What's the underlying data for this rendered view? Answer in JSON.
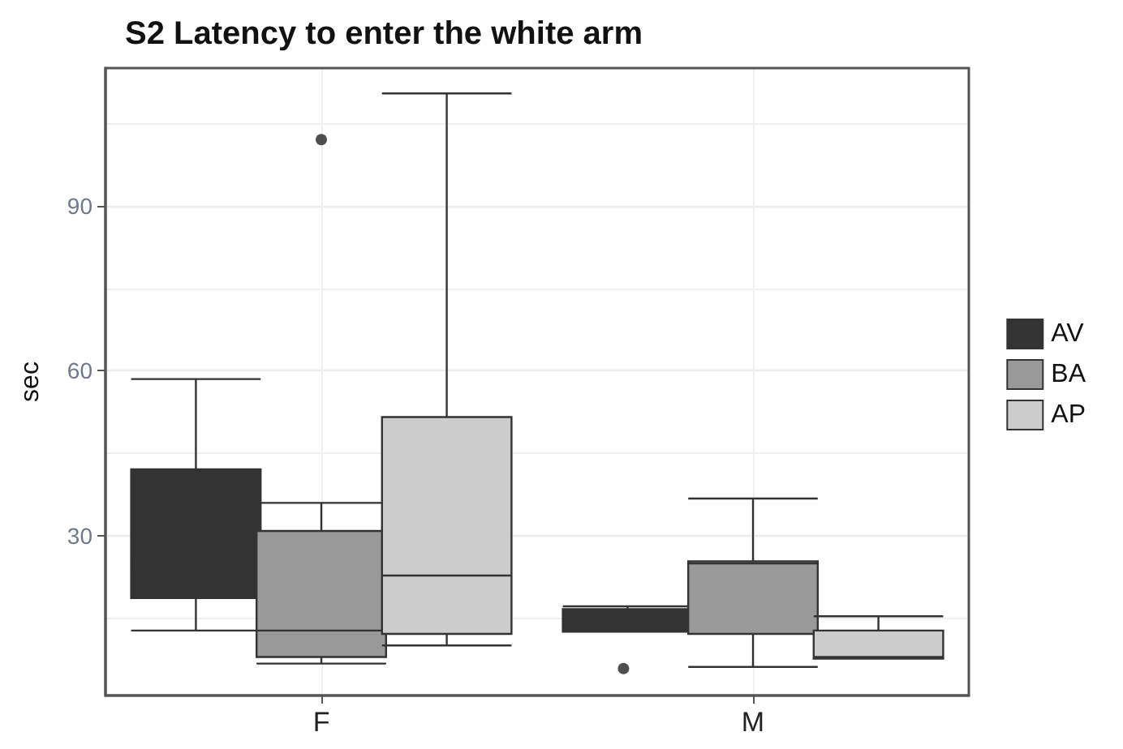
{
  "chart_data": {
    "type": "box",
    "title": "S2 Latency to enter the white arm",
    "ylabel": "sec",
    "categories": [
      "F",
      "M"
    ],
    "series": [
      {
        "name": "AV",
        "color": "#333333",
        "boxes": [
          {
            "low": 12.8,
            "q1": 18.7,
            "median": 25,
            "q3": 42.1,
            "high": 58.5
          },
          {
            "low": 12.6,
            "q1": 12.6,
            "median": 16.7,
            "q3": 16.7,
            "high": 17.2,
            "outliers": [
              5.9
            ]
          }
        ]
      },
      {
        "name": "BA",
        "color": "#999999",
        "boxes": [
          {
            "low": 6.8,
            "q1": 8.0,
            "median": 12.8,
            "q3": 30.9,
            "high": 36.0,
            "outliers": [
              102
            ]
          },
          {
            "low": 6.2,
            "q1": 12.2,
            "median": 25.0,
            "q3": 25.4,
            "high": 36.8
          }
        ]
      },
      {
        "name": "AP",
        "color": "#cccccc",
        "boxes": [
          {
            "low": 10.1,
            "q1": 12.2,
            "median": 22.8,
            "q3": 51.6,
            "high": 110.4
          },
          {
            "low": 7.7,
            "q1": 7.7,
            "median": 8.0,
            "q3": 12.8,
            "high": 15.4
          }
        ]
      }
    ],
    "ylim": [
      1,
      115
    ],
    "yticks": [
      30,
      60,
      90
    ],
    "grid": true,
    "legend": "right"
  }
}
